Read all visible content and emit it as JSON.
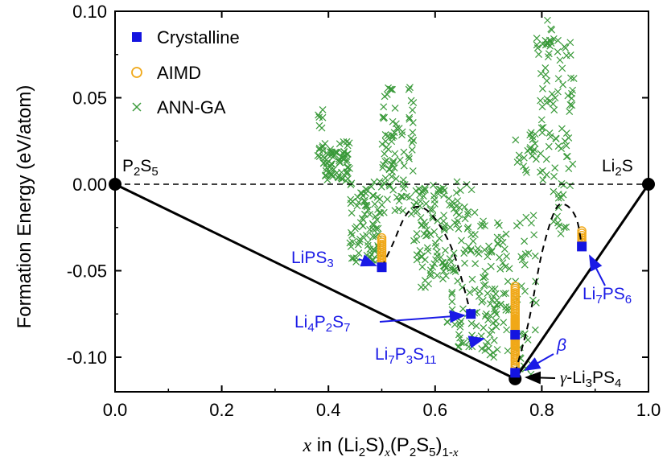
{
  "chart_data": {
    "type": "scatter",
    "xlabel": {
      "x": "x",
      "pre": " in (Li",
      "s1": "2",
      "mid1": "S)",
      "xsub": "x",
      "mid2": "(P",
      "s2": "2",
      "mid3": "S",
      "s3": "5",
      "mid4": ")",
      "s4": "1-",
      "s5": "x"
    },
    "ylabel": "Formation Energy (eV/atom)",
    "xlim": [
      0.0,
      1.0
    ],
    "ylim": [
      -0.12,
      0.1
    ],
    "x_ticks": [
      "0.0",
      "0.2",
      "0.4",
      "0.6",
      "0.8",
      "1.0"
    ],
    "y_ticks": [
      "-0.10",
      "-0.05",
      "0.00",
      "0.05",
      "0.10"
    ],
    "grid": false,
    "legend_position": "top-left",
    "colors": {
      "crystalline": "#1414e0",
      "aimd": "#f0a818",
      "annga": "#3a9a3a",
      "hull": "#000000",
      "annotation": "#1a1ae6"
    },
    "legend": [
      "Crystalline",
      "AIMD",
      "ANN-GA"
    ],
    "convex_hull": [
      {
        "x": 0.0,
        "y": 0.0
      },
      {
        "x": 0.75,
        "y": -0.1125
      },
      {
        "x": 1.0,
        "y": 0.0
      }
    ],
    "zero_line": 0.0,
    "crystalline": [
      {
        "x": 0.5,
        "y": -0.048
      },
      {
        "x": 0.667,
        "y": -0.075
      },
      {
        "x": 0.75,
        "y": -0.087
      },
      {
        "x": 0.75,
        "y": -0.109
      },
      {
        "x": 0.875,
        "y": -0.036
      }
    ],
    "aimd_groups": [
      {
        "x": 0.5,
        "ymin": -0.047,
        "ymax": -0.031
      },
      {
        "x": 0.75,
        "ymin": -0.093,
        "ymax": -0.078
      },
      {
        "x": 0.75,
        "ymin": -0.106,
        "ymax": -0.059
      },
      {
        "x": 0.875,
        "ymin": -0.035,
        "ymax": -0.027
      }
    ],
    "annga_clusters": [
      {
        "xmin": 0.38,
        "xmax": 0.39,
        "ymin": 0.015,
        "ymax": 0.045
      },
      {
        "xmin": 0.39,
        "xmax": 0.44,
        "ymin": 0.002,
        "ymax": 0.025
      },
      {
        "xmin": 0.44,
        "xmax": 0.5,
        "ymin": -0.045,
        "ymax": 0.002
      },
      {
        "xmin": 0.5,
        "xmax": 0.56,
        "ymin": -0.02,
        "ymax": 0.058
      },
      {
        "xmin": 0.56,
        "xmax": 0.62,
        "ymin": -0.06,
        "ymax": 0.002
      },
      {
        "xmin": 0.62,
        "xmax": 0.68,
        "ymin": -0.095,
        "ymax": 0.002
      },
      {
        "xmin": 0.68,
        "xmax": 0.74,
        "ymin": -0.1,
        "ymax": -0.02
      },
      {
        "xmin": 0.75,
        "xmax": 0.79,
        "ymin": -0.11,
        "ymax": 0.03
      },
      {
        "xmin": 0.79,
        "xmax": 0.82,
        "ymin": 0.0,
        "ymax": 0.095
      },
      {
        "xmin": 0.82,
        "xmax": 0.86,
        "ymin": -0.03,
        "ymax": 0.085
      }
    ],
    "dashed_curves": [
      [
        [
          0.5,
          -0.048
        ],
        [
          0.52,
          -0.035
        ],
        [
          0.545,
          -0.018
        ],
        [
          0.57,
          -0.013
        ],
        [
          0.6,
          -0.02
        ],
        [
          0.635,
          -0.04
        ],
        [
          0.667,
          -0.075
        ]
      ],
      [
        [
          0.75,
          -0.109
        ],
        [
          0.775,
          -0.08
        ],
        [
          0.8,
          -0.04
        ],
        [
          0.825,
          -0.015
        ],
        [
          0.845,
          -0.012
        ],
        [
          0.865,
          -0.02
        ],
        [
          0.875,
          -0.036
        ]
      ]
    ],
    "labels": {
      "p2s5": {
        "base": "P",
        "s1": "2",
        "mid": "S",
        "s2": "5"
      },
      "li2s": {
        "base": "Li",
        "s1": "2",
        "mid": "S"
      },
      "lips3": {
        "base": "LiPS",
        "s1": "3"
      },
      "li4p2s7": {
        "a": "Li",
        "s1": "4",
        "b": "P",
        "s2": "2",
        "c": "S",
        "s3": "7"
      },
      "li7p3s11": {
        "a": "Li",
        "s1": "7",
        "b": "P",
        "s2": "3",
        "c": "S",
        "s3": "11"
      },
      "li7ps6": {
        "a": "Li",
        "s1": "7",
        "b": "PS",
        "s2": "6"
      },
      "beta": "β",
      "gamma": {
        "pre": "γ",
        "mid": "-Li",
        "s1": "3",
        "b": "PS",
        "s2": "4"
      }
    }
  }
}
